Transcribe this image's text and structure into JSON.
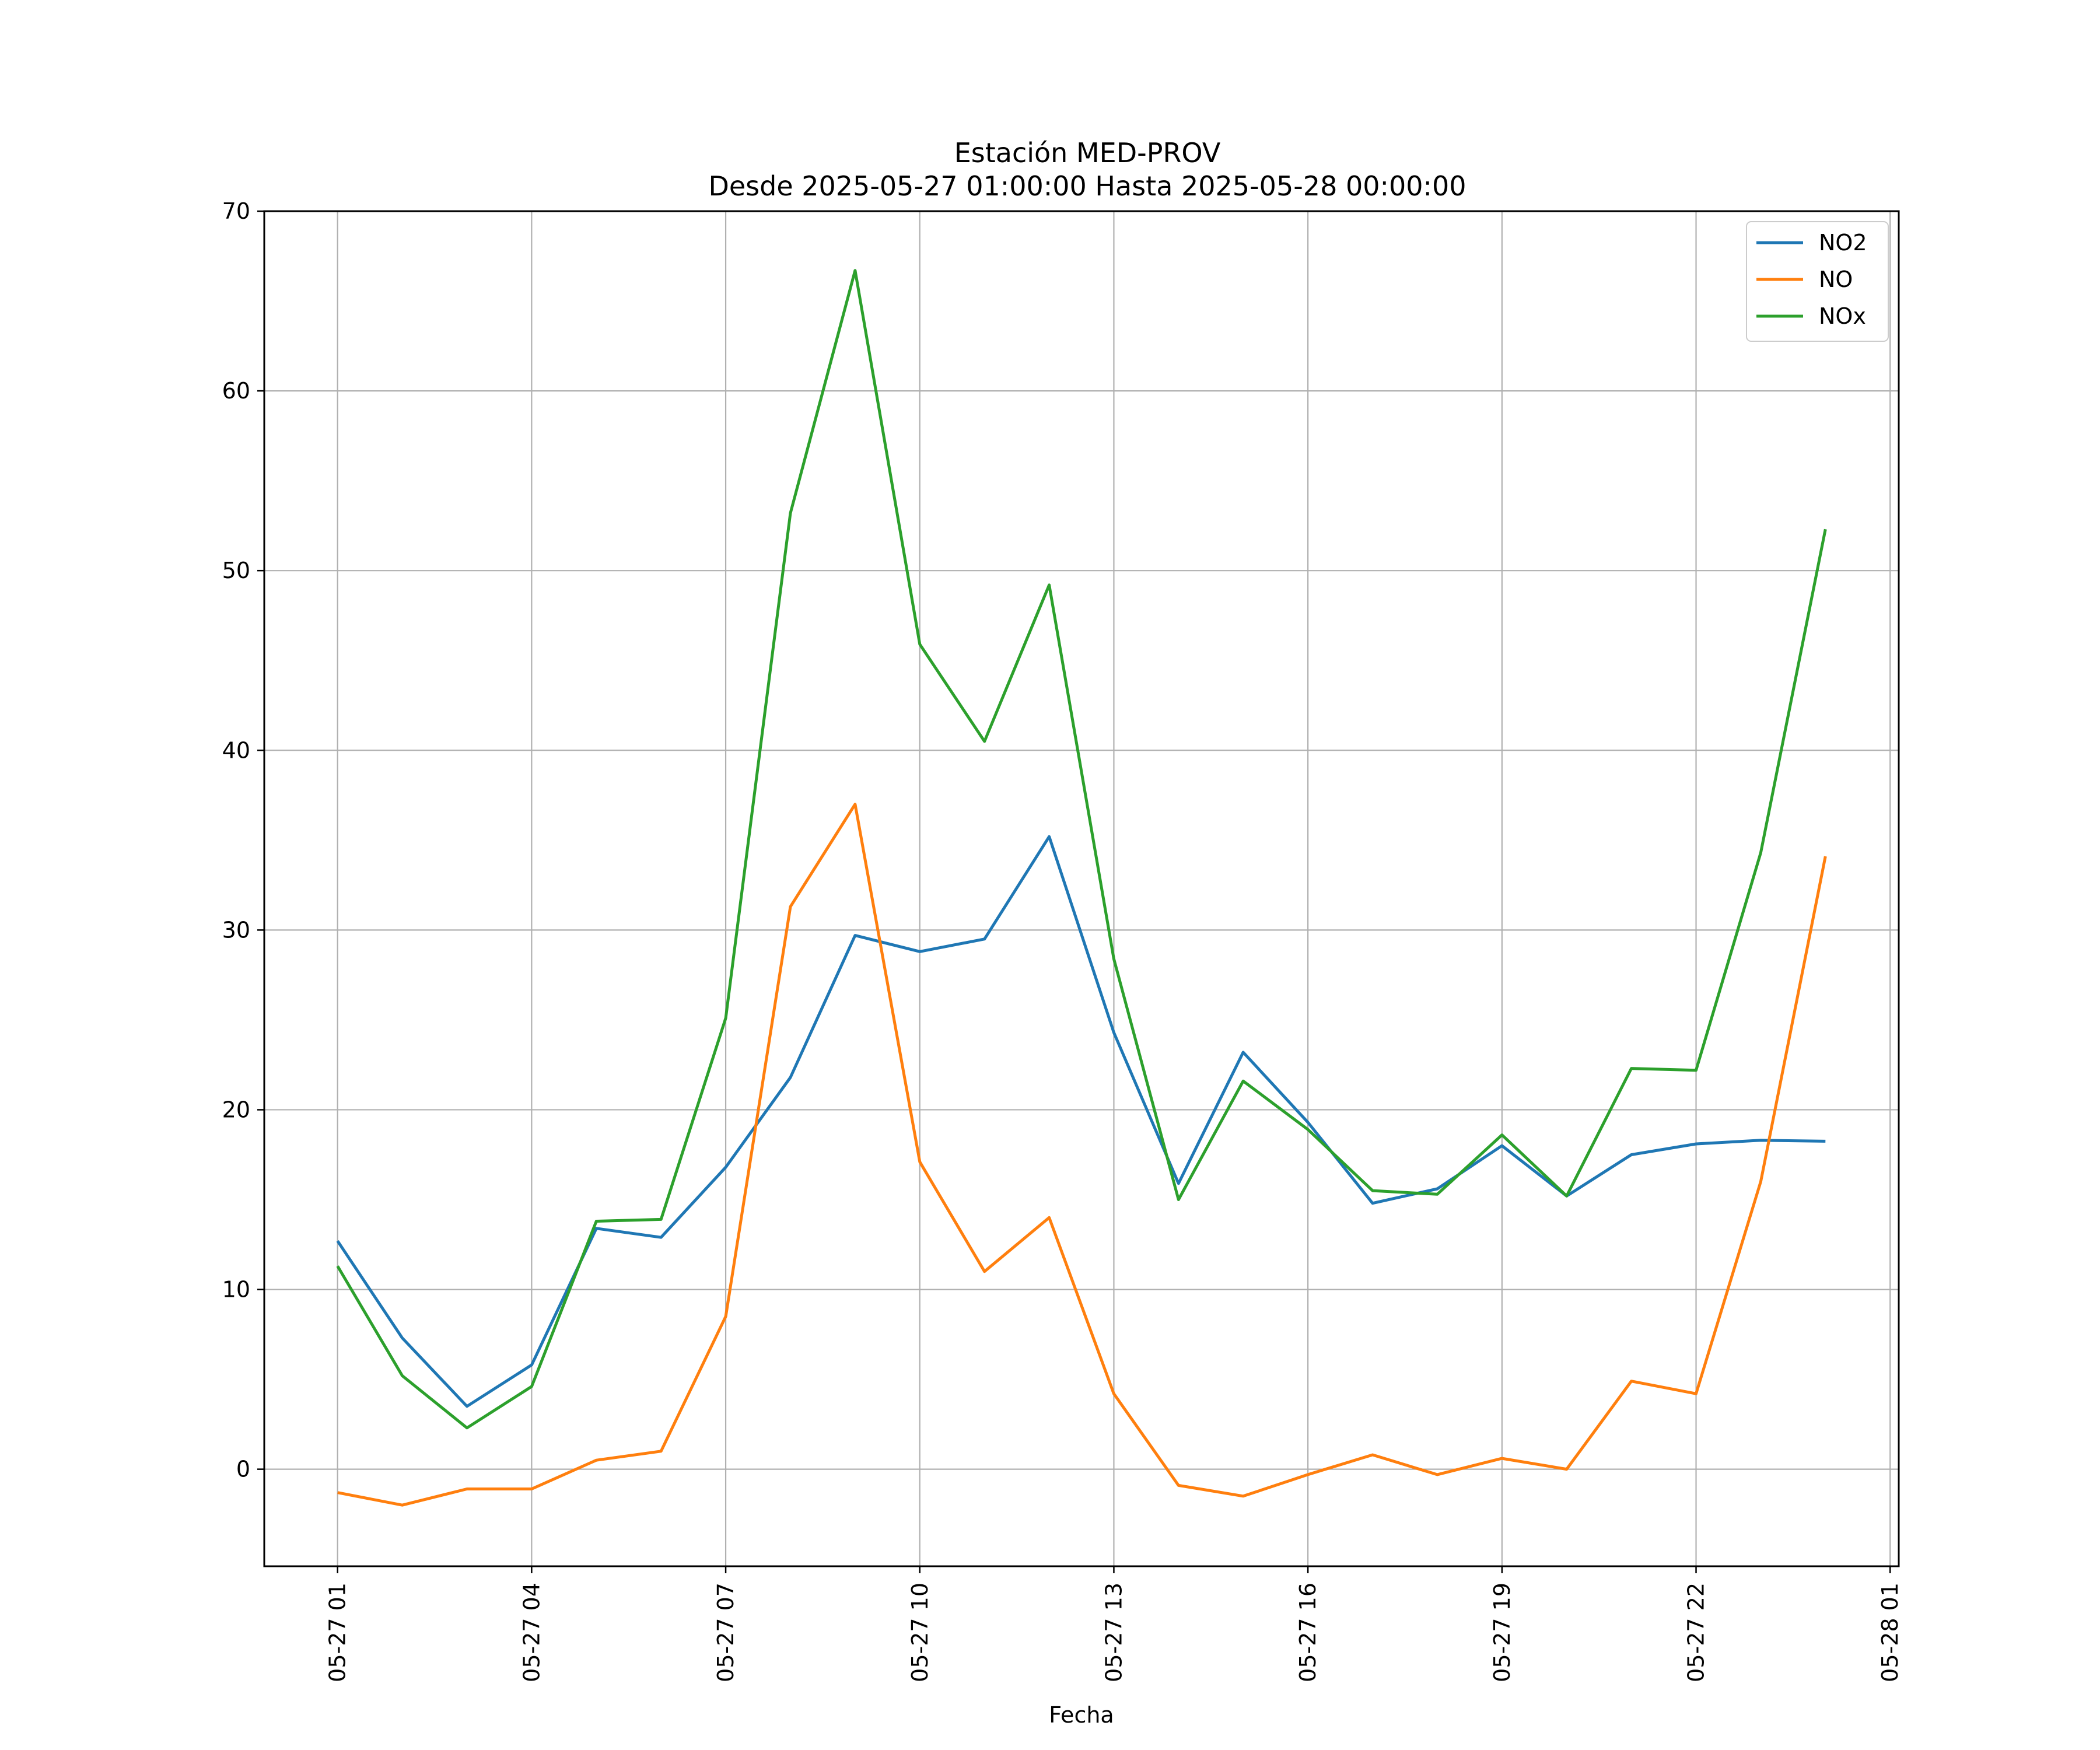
{
  "chart_data": {
    "type": "line",
    "title": "Estación MED-PROV",
    "subtitle": "Desde 2025-05-27 01:00:00 Hasta 2025-05-28 00:00:00",
    "xlabel": "Fecha",
    "ylabel": "",
    "x": [
      "2025-05-27 01:00",
      "2025-05-27 02:00",
      "2025-05-27 03:00",
      "2025-05-27 04:00",
      "2025-05-27 05:00",
      "2025-05-27 06:00",
      "2025-05-27 07:00",
      "2025-05-27 08:00",
      "2025-05-27 09:00",
      "2025-05-27 10:00",
      "2025-05-27 11:00",
      "2025-05-27 12:00",
      "2025-05-27 13:00",
      "2025-05-27 14:00",
      "2025-05-27 15:00",
      "2025-05-27 16:00",
      "2025-05-27 17:00",
      "2025-05-27 18:00",
      "2025-05-27 19:00",
      "2025-05-27 20:00",
      "2025-05-27 21:00",
      "2025-05-27 22:00",
      "2025-05-27 23:00",
      "2025-05-28 00:00"
    ],
    "series": [
      {
        "name": "NO2",
        "color": "#1f77b4",
        "values": [
          12.7,
          7.3,
          3.5,
          5.8,
          13.4,
          12.9,
          16.8,
          21.8,
          29.7,
          28.8,
          29.5,
          35.2,
          24.3,
          15.9,
          23.2,
          19.3,
          14.8,
          15.6,
          18.0,
          15.2,
          17.5,
          18.1,
          18.3,
          18.25
        ]
      },
      {
        "name": "NO",
        "color": "#ff7f0e",
        "values": [
          -1.3,
          -2.0,
          -1.1,
          -1.1,
          0.5,
          1.0,
          8.5,
          31.3,
          37.0,
          17.1,
          11.0,
          14.0,
          4.2,
          -0.9,
          -1.5,
          -0.3,
          0.8,
          -0.3,
          0.6,
          0.0,
          4.9,
          4.2,
          16.0,
          34.1
        ]
      },
      {
        "name": "NOx",
        "color": "#2ca02c",
        "values": [
          11.3,
          5.2,
          2.3,
          4.6,
          13.8,
          13.9,
          25.1,
          53.2,
          66.7,
          45.9,
          40.5,
          49.2,
          28.4,
          15.0,
          21.6,
          18.9,
          15.5,
          15.3,
          18.6,
          15.2,
          22.3,
          22.2,
          34.3,
          52.3
        ]
      }
    ],
    "xticks": [
      "05-27 01",
      "05-27 04",
      "05-27 07",
      "05-27 10",
      "05-27 13",
      "05-27 16",
      "05-27 19",
      "05-27 22",
      "05-28 01"
    ],
    "yticks": [
      0,
      10,
      20,
      30,
      40,
      50,
      60,
      70
    ],
    "ylim": [
      -5.4,
      70
    ],
    "xlim": [
      "2025-05-27 -0:08",
      "2025-05-28 01:08"
    ],
    "grid": true,
    "legend_position": "upper right",
    "colors": {
      "NO2": "#1f77b4",
      "NO": "#ff7f0e",
      "NOx": "#2ca02c"
    }
  }
}
